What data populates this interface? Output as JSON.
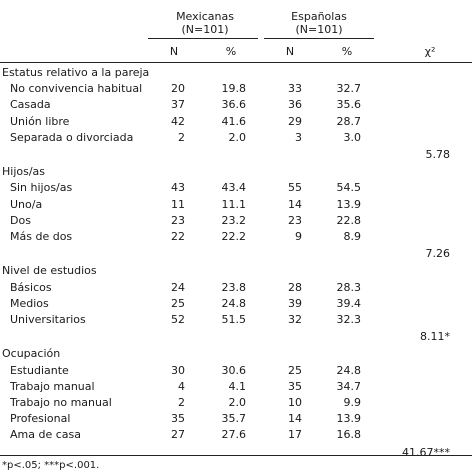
{
  "header": {
    "group1": "Mexicanas",
    "group1_n": "(N=101)",
    "group2": "Españolas",
    "group2_n": "(N=101)",
    "col_n": "N",
    "col_pct": "%",
    "col_chi": "χ²"
  },
  "sections": [
    {
      "title": "Estatus relativo a la pareja",
      "rows": [
        {
          "label": "No convivencia habitual",
          "mn": "20",
          "mp": "19.8",
          "en": "33",
          "ep": "32.7"
        },
        {
          "label": "Casada",
          "mn": "37",
          "mp": "36.6",
          "en": "36",
          "ep": "35.6"
        },
        {
          "label": "Unión libre",
          "mn": "42",
          "mp": "41.6",
          "en": "29",
          "ep": "28.7"
        },
        {
          "label": "Separada o divorciada",
          "mn": "2",
          "mp": "2.0",
          "en": "3",
          "ep": "3.0"
        }
      ],
      "chi": "5.78"
    },
    {
      "title": "Hijos/as",
      "rows": [
        {
          "label": "Sin hijos/as",
          "mn": "43",
          "mp": "43.4",
          "en": "55",
          "ep": "54.5"
        },
        {
          "label": "Uno/a",
          "mn": "11",
          "mp": "11.1",
          "en": "14",
          "ep": "13.9"
        },
        {
          "label": "Dos",
          "mn": "23",
          "mp": "23.2",
          "en": "23",
          "ep": "22.8"
        },
        {
          "label": "Más de dos",
          "mn": "22",
          "mp": "22.2",
          "en": "9",
          "ep": "8.9"
        }
      ],
      "chi": "7.26"
    },
    {
      "title": "Nivel de estudios",
      "rows": [
        {
          "label": "Básicos",
          "mn": "24",
          "mp": "23.8",
          "en": "28",
          "ep": "28.3"
        },
        {
          "label": "Medios",
          "mn": "25",
          "mp": "24.8",
          "en": "39",
          "ep": "39.4"
        },
        {
          "label": "Universitarios",
          "mn": "52",
          "mp": "51.5",
          "en": "32",
          "ep": "32.3"
        }
      ],
      "chi": "8.11*"
    },
    {
      "title": "Ocupación",
      "rows": [
        {
          "label": "Estudiante",
          "mn": "30",
          "mp": "30.6",
          "en": "25",
          "ep": "24.8"
        },
        {
          "label": "Trabajo manual",
          "mn": "4",
          "mp": "4.1",
          "en": "35",
          "ep": "34.7"
        },
        {
          "label": "Trabajo no manual",
          "mn": "2",
          "mp": "2.0",
          "en": "10",
          "ep": "9.9"
        },
        {
          "label": "Profesional",
          "mn": "35",
          "mp": "35.7",
          "en": "14",
          "ep": "13.9"
        },
        {
          "label": "Ama de casa",
          "mn": "27",
          "mp": "27.6",
          "en": "17",
          "ep": "16.8"
        }
      ],
      "chi": "41.67***"
    }
  ],
  "footnote": "*p<.05; ***p<.001."
}
